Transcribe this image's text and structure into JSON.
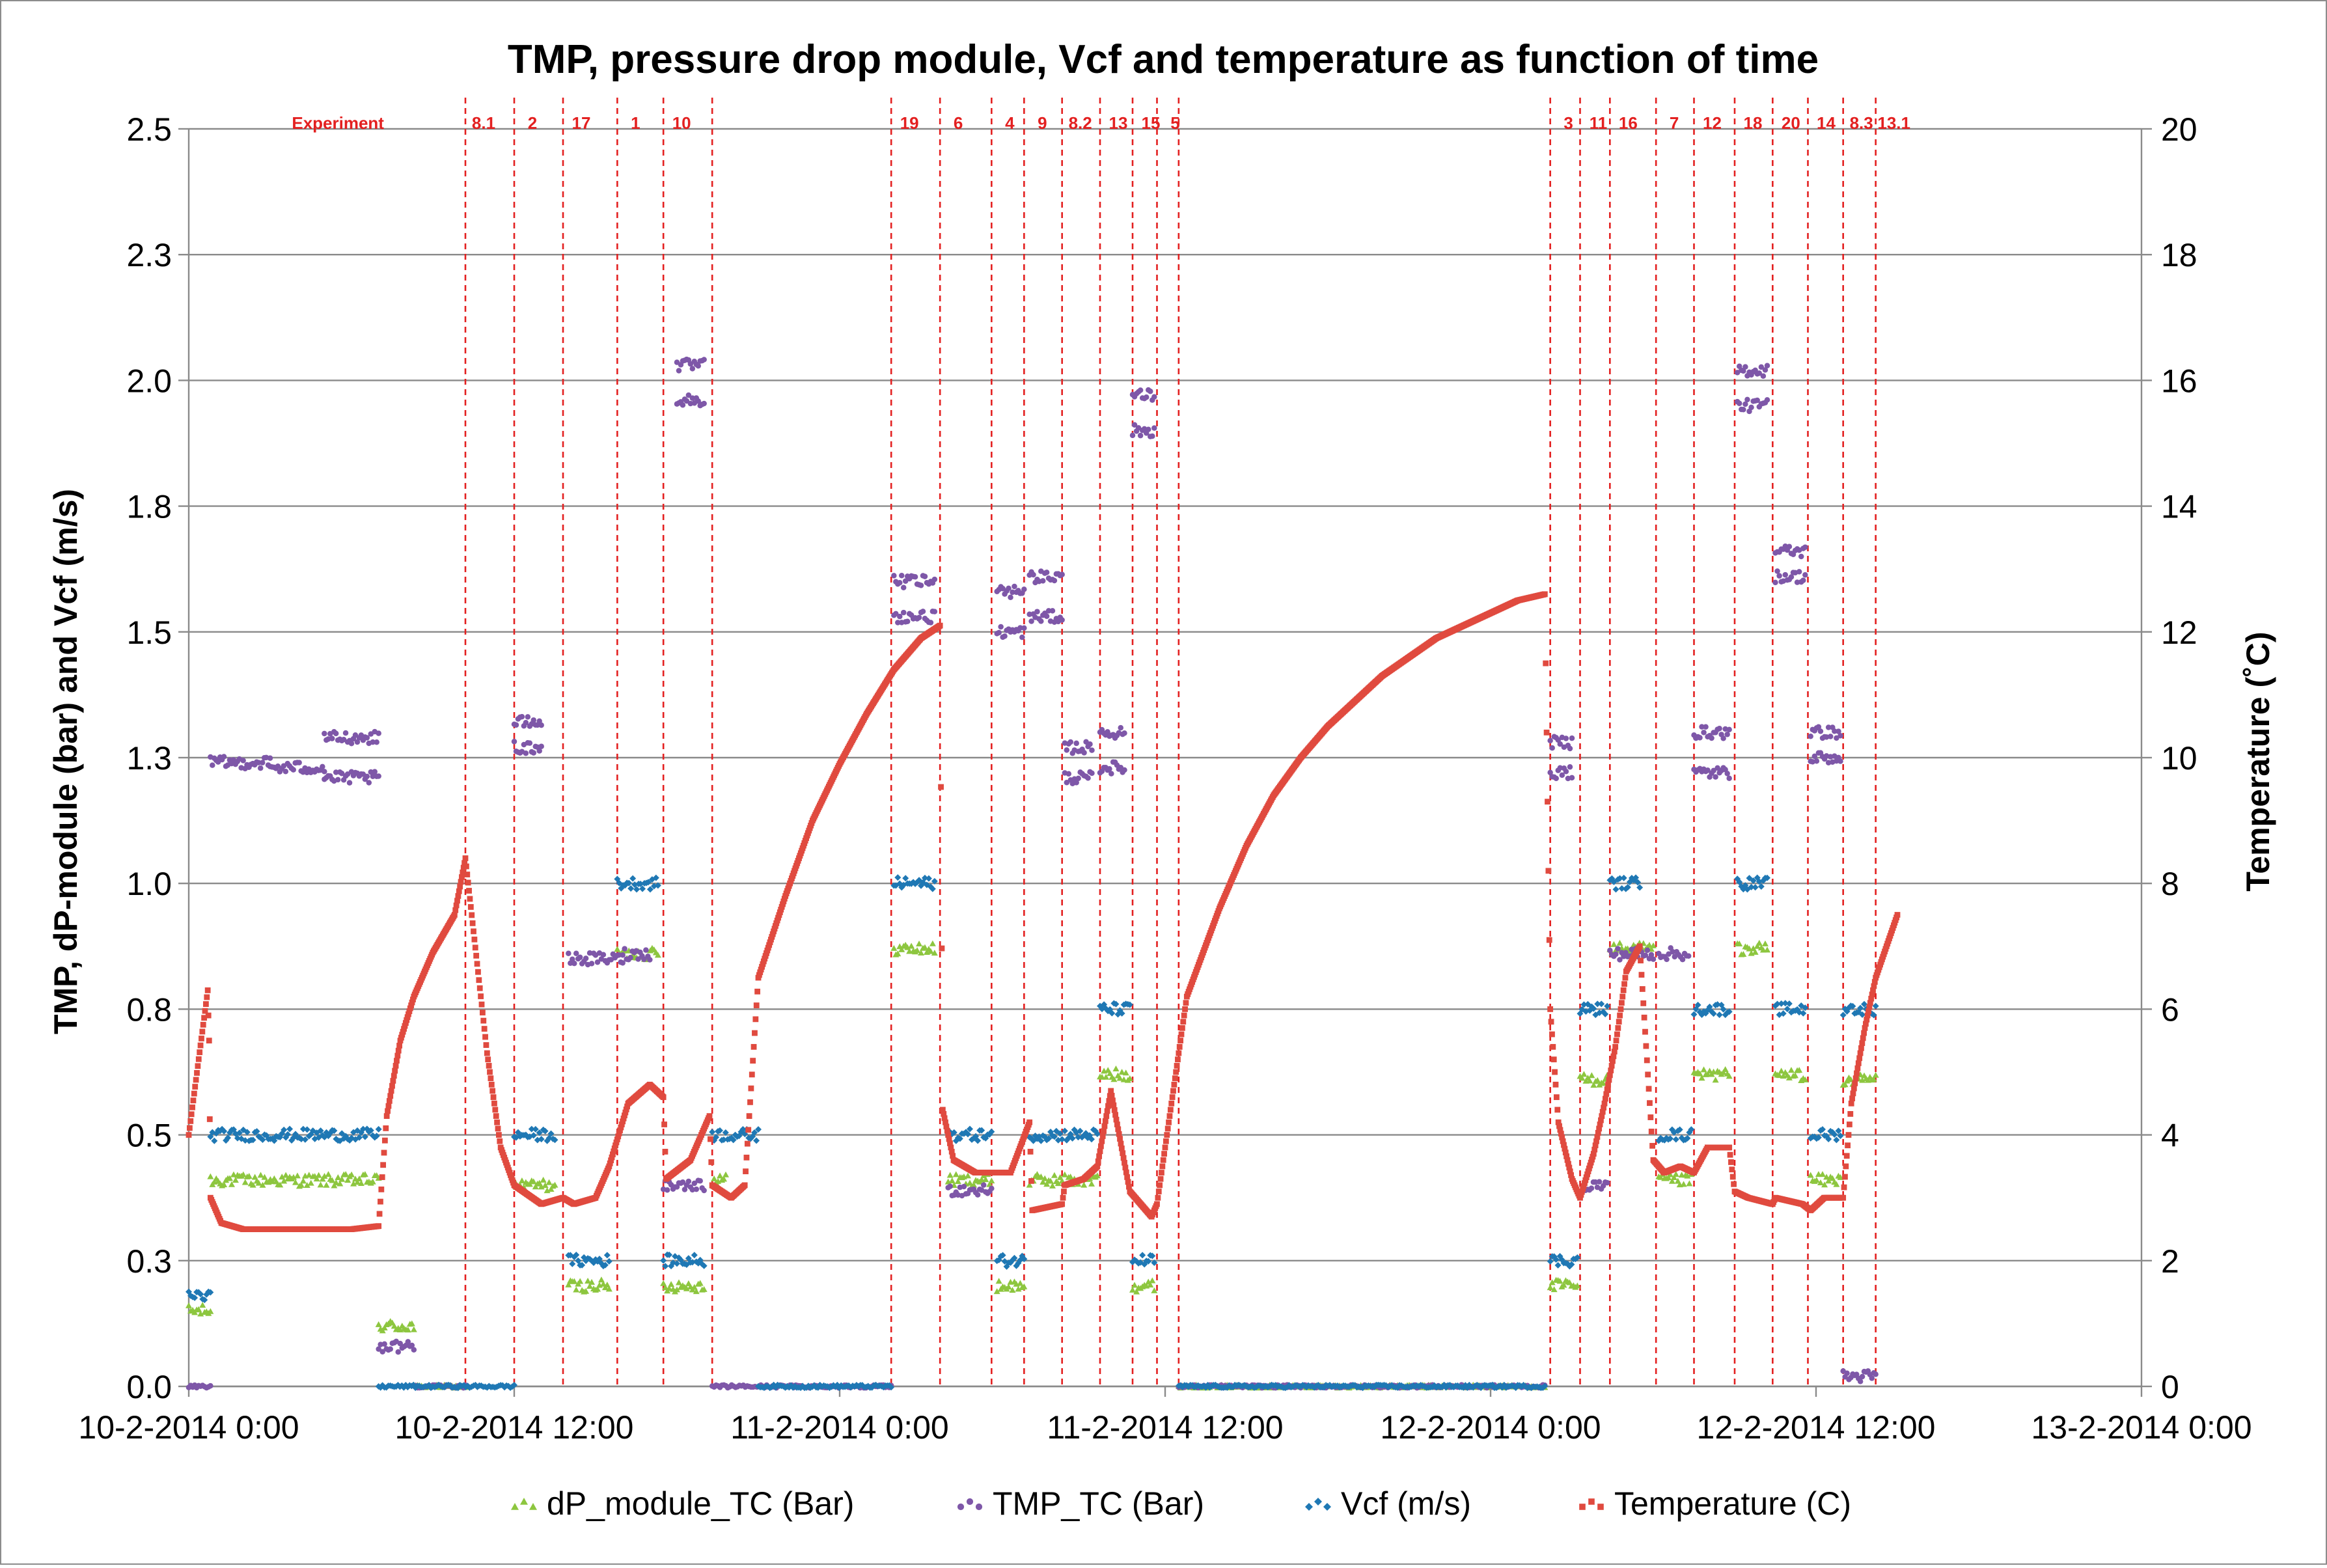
{
  "chart_data": {
    "type": "scatter",
    "title": "TMP, pressure drop module, Vcf and temperature as function of time",
    "ylabel_left": "TMP,  dP-module (bar) and Vcf (m/s)",
    "ylabel_right": "Temperature (˚C)",
    "x_axis": {
      "unit": "hours since 10-2-2014 0:00",
      "range": [
        0,
        72
      ],
      "ticks": [
        0,
        12,
        24,
        36,
        48,
        60,
        72
      ],
      "tick_labels": [
        "10-2-2014 0:00",
        "10-2-2014 12:00",
        "11-2-2014 0:00",
        "11-2-2014 12:00",
        "12-2-2014 0:00",
        "12-2-2014 12:00",
        "13-2-2014 0:00"
      ]
    },
    "y_left": {
      "range": [
        0,
        2.5
      ],
      "ticks": [
        0.0,
        0.25,
        0.5,
        0.75,
        1.0,
        1.25,
        1.5,
        1.75,
        2.0,
        2.25,
        2.5
      ],
      "tick_labels": [
        "0.0",
        "0.3",
        "0.5",
        "0.8",
        "1.0",
        "1.3",
        "1.5",
        "1.8",
        "2.0",
        "2.3",
        "2.5"
      ]
    },
    "y_right": {
      "range": [
        0,
        20
      ],
      "ticks": [
        0,
        2,
        4,
        6,
        8,
        10,
        12,
        14,
        16,
        18,
        20
      ],
      "tick_labels": [
        "0",
        "2",
        "4",
        "6",
        "8",
        "10",
        "12",
        "14",
        "16",
        "18",
        "20"
      ]
    },
    "grid": "horizontal",
    "legend_position": "bottom",
    "legend": [
      {
        "key": "dp",
        "label": "dP_module_TC (Bar)",
        "color": "#8DC63F",
        "marker": "triangle"
      },
      {
        "key": "tmp",
        "label": "TMP_TC (Bar)",
        "color": "#7E57A8",
        "marker": "circle"
      },
      {
        "key": "vcf",
        "label": "Vcf (m/s)",
        "color": "#1F78B4",
        "marker": "diamond"
      },
      {
        "key": "temp",
        "label": "Temperature (C)",
        "color": "#E04A3F",
        "marker": "square"
      }
    ],
    "experiment_label": "Experiment",
    "experiment_label_x": 5.5,
    "experiment_markers": [
      {
        "x": 10.2,
        "label": "8.1"
      },
      {
        "x": 12.0,
        "label": "2"
      },
      {
        "x": 13.8,
        "label": "17"
      },
      {
        "x": 15.8,
        "label": "1"
      },
      {
        "x": 17.5,
        "label": "10"
      },
      {
        "x": 19.3,
        "label": ""
      },
      {
        "x": 25.9,
        "label": "19"
      },
      {
        "x": 27.7,
        "label": "6"
      },
      {
        "x": 29.6,
        "label": "4"
      },
      {
        "x": 30.8,
        "label": "9"
      },
      {
        "x": 32.2,
        "label": "8.2"
      },
      {
        "x": 33.6,
        "label": "13"
      },
      {
        "x": 34.8,
        "label": "15"
      },
      {
        "x": 35.7,
        "label": "5"
      },
      {
        "x": 36.5,
        "label": ""
      },
      {
        "x": 50.2,
        "label": "3"
      },
      {
        "x": 51.3,
        "label": "11"
      },
      {
        "x": 52.4,
        "label": "16"
      },
      {
        "x": 54.1,
        "label": "7"
      },
      {
        "x": 55.5,
        "label": "12"
      },
      {
        "x": 57.0,
        "label": "18"
      },
      {
        "x": 58.4,
        "label": "20"
      },
      {
        "x": 59.7,
        "label": "14"
      },
      {
        "x": 61.0,
        "label": "8.3"
      },
      {
        "x": 62.2,
        "label": "13.1"
      }
    ],
    "series": [
      {
        "key": "tmp",
        "name": "TMP_TC (Bar)",
        "axis": "left",
        "segments": [
          {
            "x0": 0.0,
            "x1": 0.8,
            "y": 0.0
          },
          {
            "x0": 0.8,
            "x1": 3.0,
            "y": 1.24
          },
          {
            "x0": 3.0,
            "x1": 5.0,
            "y": 1.23
          },
          {
            "x0": 5.0,
            "x1": 7.0,
            "y": 1.21
          },
          {
            "x0": 5.0,
            "x1": 7.0,
            "y": 1.29
          },
          {
            "x0": 7.0,
            "x1": 8.3,
            "y": 0.08
          },
          {
            "x0": 8.3,
            "x1": 10.2,
            "y": 0.0
          },
          {
            "x0": 12.0,
            "x1": 13.0,
            "y": 1.27
          },
          {
            "x0": 12.0,
            "x1": 13.0,
            "y": 1.32
          },
          {
            "x0": 14.0,
            "x1": 16.0,
            "y": 0.85
          },
          {
            "x0": 16.0,
            "x1": 17.0,
            "y": 0.86
          },
          {
            "x0": 17.5,
            "x1": 19.0,
            "y": 0.4
          },
          {
            "x0": 18.0,
            "x1": 19.0,
            "y": 1.96
          },
          {
            "x0": 18.0,
            "x1": 19.0,
            "y": 2.03
          },
          {
            "x0": 19.3,
            "x1": 25.9,
            "y": 0.0
          },
          {
            "x0": 26.0,
            "x1": 27.5,
            "y": 1.53
          },
          {
            "x0": 26.0,
            "x1": 27.5,
            "y": 1.6
          },
          {
            "x0": 28.0,
            "x1": 29.6,
            "y": 0.39
          },
          {
            "x0": 29.8,
            "x1": 30.8,
            "y": 1.5
          },
          {
            "x0": 29.8,
            "x1": 30.8,
            "y": 1.58
          },
          {
            "x0": 31.0,
            "x1": 32.2,
            "y": 1.53
          },
          {
            "x0": 31.0,
            "x1": 32.2,
            "y": 1.61
          },
          {
            "x0": 32.3,
            "x1": 33.3,
            "y": 1.21
          },
          {
            "x0": 32.3,
            "x1": 33.3,
            "y": 1.27
          },
          {
            "x0": 33.6,
            "x1": 34.5,
            "y": 1.23
          },
          {
            "x0": 33.6,
            "x1": 34.5,
            "y": 1.3
          },
          {
            "x0": 34.8,
            "x1": 35.6,
            "y": 1.9
          },
          {
            "x0": 34.8,
            "x1": 35.6,
            "y": 1.97
          },
          {
            "x0": 36.5,
            "x1": 50.0,
            "y": 0.0
          },
          {
            "x0": 50.2,
            "x1": 51.0,
            "y": 1.22
          },
          {
            "x0": 50.2,
            "x1": 51.0,
            "y": 1.28
          },
          {
            "x0": 51.5,
            "x1": 52.3,
            "y": 0.4
          },
          {
            "x0": 52.4,
            "x1": 54.0,
            "y": 0.86
          },
          {
            "x0": 54.2,
            "x1": 55.3,
            "y": 0.86
          },
          {
            "x0": 55.5,
            "x1": 56.8,
            "y": 1.22
          },
          {
            "x0": 55.5,
            "x1": 56.8,
            "y": 1.3
          },
          {
            "x0": 57.1,
            "x1": 58.2,
            "y": 1.95
          },
          {
            "x0": 57.1,
            "x1": 58.2,
            "y": 2.02
          },
          {
            "x0": 58.5,
            "x1": 59.6,
            "y": 1.61
          },
          {
            "x0": 58.5,
            "x1": 59.6,
            "y": 1.66
          },
          {
            "x0": 59.8,
            "x1": 60.9,
            "y": 1.25
          },
          {
            "x0": 59.8,
            "x1": 60.9,
            "y": 1.3
          },
          {
            "x0": 61.0,
            "x1": 62.2,
            "y": 0.02
          }
        ]
      },
      {
        "key": "dp",
        "name": "dP_module_TC (Bar)",
        "axis": "left",
        "segments": [
          {
            "x0": 0.0,
            "x1": 0.8,
            "y": 0.15
          },
          {
            "x0": 0.8,
            "x1": 7.0,
            "y": 0.41
          },
          {
            "x0": 7.0,
            "x1": 8.3,
            "y": 0.12
          },
          {
            "x0": 8.3,
            "x1": 10.2,
            "y": 0.0
          },
          {
            "x0": 12.0,
            "x1": 13.5,
            "y": 0.4
          },
          {
            "x0": 14.0,
            "x1": 15.5,
            "y": 0.2
          },
          {
            "x0": 15.8,
            "x1": 17.3,
            "y": 0.86
          },
          {
            "x0": 17.5,
            "x1": 19.0,
            "y": 0.2
          },
          {
            "x0": 19.3,
            "x1": 19.8,
            "y": 0.41
          },
          {
            "x0": 26.0,
            "x1": 27.5,
            "y": 0.87
          },
          {
            "x0": 28.0,
            "x1": 29.6,
            "y": 0.41
          },
          {
            "x0": 29.8,
            "x1": 30.8,
            "y": 0.2
          },
          {
            "x0": 31.0,
            "x1": 32.2,
            "y": 0.41
          },
          {
            "x0": 32.3,
            "x1": 33.5,
            "y": 0.41
          },
          {
            "x0": 33.6,
            "x1": 34.7,
            "y": 0.62
          },
          {
            "x0": 34.8,
            "x1": 35.6,
            "y": 0.2
          },
          {
            "x0": 36.5,
            "x1": 50.0,
            "y": 0.0
          },
          {
            "x0": 50.2,
            "x1": 51.2,
            "y": 0.2
          },
          {
            "x0": 51.3,
            "x1": 52.3,
            "y": 0.61
          },
          {
            "x0": 52.4,
            "x1": 54.0,
            "y": 0.87
          },
          {
            "x0": 54.2,
            "x1": 55.4,
            "y": 0.41
          },
          {
            "x0": 55.5,
            "x1": 56.8,
            "y": 0.62
          },
          {
            "x0": 57.1,
            "x1": 58.2,
            "y": 0.87
          },
          {
            "x0": 58.5,
            "x1": 59.6,
            "y": 0.62
          },
          {
            "x0": 59.8,
            "x1": 60.9,
            "y": 0.41
          },
          {
            "x0": 61.0,
            "x1": 62.2,
            "y": 0.61
          }
        ]
      },
      {
        "key": "vcf",
        "name": "Vcf (m/s)",
        "axis": "left",
        "segments": [
          {
            "x0": 0.0,
            "x1": 0.8,
            "y": 0.18
          },
          {
            "x0": 0.8,
            "x1": 7.0,
            "y": 0.5
          },
          {
            "x0": 7.0,
            "x1": 12.0,
            "y": 0.0
          },
          {
            "x0": 12.0,
            "x1": 13.5,
            "y": 0.5
          },
          {
            "x0": 14.0,
            "x1": 15.5,
            "y": 0.25
          },
          {
            "x0": 15.8,
            "x1": 17.3,
            "y": 1.0
          },
          {
            "x0": 17.5,
            "x1": 19.0,
            "y": 0.25
          },
          {
            "x0": 19.3,
            "x1": 21.0,
            "y": 0.5
          },
          {
            "x0": 21.0,
            "x1": 25.9,
            "y": 0.0
          },
          {
            "x0": 26.0,
            "x1": 27.5,
            "y": 1.0
          },
          {
            "x0": 28.0,
            "x1": 29.6,
            "y": 0.5
          },
          {
            "x0": 29.8,
            "x1": 30.8,
            "y": 0.25
          },
          {
            "x0": 31.0,
            "x1": 32.2,
            "y": 0.5
          },
          {
            "x0": 32.3,
            "x1": 33.5,
            "y": 0.5
          },
          {
            "x0": 33.6,
            "x1": 34.7,
            "y": 0.75
          },
          {
            "x0": 34.8,
            "x1": 35.6,
            "y": 0.25
          },
          {
            "x0": 36.5,
            "x1": 50.0,
            "y": 0.0
          },
          {
            "x0": 50.2,
            "x1": 51.2,
            "y": 0.25
          },
          {
            "x0": 51.3,
            "x1": 52.3,
            "y": 0.75
          },
          {
            "x0": 52.4,
            "x1": 53.5,
            "y": 1.0
          },
          {
            "x0": 54.2,
            "x1": 55.4,
            "y": 0.5
          },
          {
            "x0": 55.5,
            "x1": 56.8,
            "y": 0.75
          },
          {
            "x0": 57.1,
            "x1": 58.2,
            "y": 1.0
          },
          {
            "x0": 58.5,
            "x1": 59.6,
            "y": 0.75
          },
          {
            "x0": 59.8,
            "x1": 60.9,
            "y": 0.5
          },
          {
            "x0": 61.0,
            "x1": 62.2,
            "y": 0.75
          }
        ]
      },
      {
        "key": "temp",
        "name": "Temperature (C)",
        "axis": "right",
        "points": [
          [
            0.0,
            4.0
          ],
          [
            0.7,
            6.3
          ],
          [
            0.75,
            5.5
          ],
          [
            0.8,
            3.0
          ],
          [
            1.2,
            2.6
          ],
          [
            2.0,
            2.5
          ],
          [
            4.0,
            2.5
          ],
          [
            6.0,
            2.5
          ],
          [
            7.0,
            2.55
          ],
          [
            7.3,
            4.3
          ],
          [
            7.8,
            5.5
          ],
          [
            8.3,
            6.2
          ],
          [
            9.0,
            6.9
          ],
          [
            9.8,
            7.5
          ],
          [
            10.2,
            8.4
          ],
          [
            11.0,
            5.3
          ],
          [
            11.5,
            3.8
          ],
          [
            12.0,
            3.2
          ],
          [
            13.0,
            2.9
          ],
          [
            13.8,
            3.0
          ],
          [
            14.2,
            2.9
          ],
          [
            15.0,
            3.0
          ],
          [
            15.5,
            3.5
          ],
          [
            16.2,
            4.5
          ],
          [
            17.0,
            4.8
          ],
          [
            17.5,
            4.6
          ],
          [
            17.6,
            3.3
          ],
          [
            18.5,
            3.6
          ],
          [
            19.2,
            4.3
          ],
          [
            19.3,
            3.2
          ],
          [
            20.0,
            3.0
          ],
          [
            20.5,
            3.2
          ],
          [
            21.0,
            6.5
          ],
          [
            22.0,
            7.8
          ],
          [
            23.0,
            9.0
          ],
          [
            24.0,
            9.9
          ],
          [
            25.0,
            10.7
          ],
          [
            26.0,
            11.4
          ],
          [
            27.0,
            11.9
          ],
          [
            27.7,
            12.1
          ],
          [
            27.8,
            4.4
          ],
          [
            28.2,
            3.6
          ],
          [
            29.0,
            3.4
          ],
          [
            29.6,
            3.4
          ],
          [
            30.3,
            3.4
          ],
          [
            31.0,
            4.2
          ],
          [
            31.1,
            2.8
          ],
          [
            32.2,
            2.9
          ],
          [
            32.3,
            3.2
          ],
          [
            33.0,
            3.3
          ],
          [
            33.5,
            3.5
          ],
          [
            34.0,
            4.7
          ],
          [
            34.7,
            3.1
          ],
          [
            35.5,
            2.7
          ],
          [
            35.7,
            2.9
          ],
          [
            36.8,
            6.2
          ],
          [
            38.0,
            7.6
          ],
          [
            39.0,
            8.6
          ],
          [
            40.0,
            9.4
          ],
          [
            41.0,
            10.0
          ],
          [
            42.0,
            10.5
          ],
          [
            43.0,
            10.9
          ],
          [
            44.0,
            11.3
          ],
          [
            45.0,
            11.6
          ],
          [
            46.0,
            11.9
          ],
          [
            47.0,
            12.1
          ],
          [
            48.0,
            12.3
          ],
          [
            49.0,
            12.5
          ],
          [
            50.0,
            12.6
          ],
          [
            50.2,
            6.0
          ],
          [
            50.5,
            4.2
          ],
          [
            51.0,
            3.3
          ],
          [
            51.3,
            3.0
          ],
          [
            51.8,
            3.7
          ],
          [
            52.2,
            4.5
          ],
          [
            52.6,
            5.4
          ],
          [
            53.0,
            6.6
          ],
          [
            53.5,
            7.0
          ],
          [
            54.0,
            3.6
          ],
          [
            54.4,
            3.4
          ],
          [
            55.0,
            3.5
          ],
          [
            55.5,
            3.4
          ],
          [
            56.0,
            3.8
          ],
          [
            56.8,
            3.8
          ],
          [
            57.0,
            3.1
          ],
          [
            57.5,
            3.0
          ],
          [
            58.4,
            2.9
          ],
          [
            58.5,
            3.0
          ],
          [
            59.5,
            2.9
          ],
          [
            59.8,
            2.8
          ],
          [
            60.3,
            3.0
          ],
          [
            61.0,
            3.0
          ],
          [
            61.3,
            4.5
          ],
          [
            61.8,
            5.7
          ],
          [
            62.2,
            6.5
          ],
          [
            62.6,
            7.0
          ],
          [
            63.0,
            7.5
          ]
        ]
      }
    ]
  }
}
